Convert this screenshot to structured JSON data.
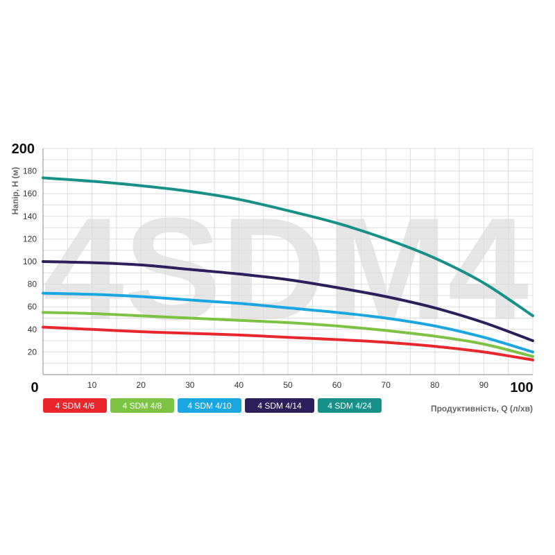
{
  "chart_data": {
    "type": "line",
    "watermark": "4SDM4",
    "ylabel": "Напір, H (м)",
    "xlabel": "Продуктивність, Q (л/хв)",
    "xlim": [
      0,
      100
    ],
    "ylim": [
      0,
      200
    ],
    "x_ticks": [
      "0",
      "10",
      "20",
      "30",
      "40",
      "50",
      "60",
      "70",
      "80",
      "90",
      "100"
    ],
    "y_ticks": [
      "20",
      "40",
      "60",
      "80",
      "100",
      "120",
      "140",
      "160",
      "180",
      "200"
    ],
    "grid": true,
    "legend_position": "bottom-left",
    "x": [
      0,
      10,
      20,
      30,
      40,
      50,
      60,
      70,
      80,
      90,
      100
    ],
    "series": [
      {
        "name": "4 SDM 4/6",
        "color": "#e8262c",
        "values": [
          42,
          40,
          38,
          36.5,
          35,
          33,
          31,
          28.5,
          25,
          20,
          13
        ]
      },
      {
        "name": "4 SDM 4/8",
        "color": "#7cc243",
        "values": [
          55,
          54,
          52,
          50,
          48,
          46,
          43,
          39,
          34,
          27,
          16
        ]
      },
      {
        "name": "4 SDM 4/10",
        "color": "#1aa6e0",
        "values": [
          72,
          71,
          69,
          66,
          63,
          59,
          55,
          50,
          43,
          33,
          20
        ]
      },
      {
        "name": "4 SDM 4/14",
        "color": "#2c1f5c",
        "values": [
          100,
          99,
          97,
          93,
          89,
          84,
          77,
          69,
          59,
          46,
          30
        ]
      },
      {
        "name": "4 SDM 4/24",
        "color": "#17908a",
        "values": [
          174,
          171,
          167,
          162,
          155,
          145,
          134,
          120,
          103,
          81,
          52
        ]
      }
    ]
  }
}
